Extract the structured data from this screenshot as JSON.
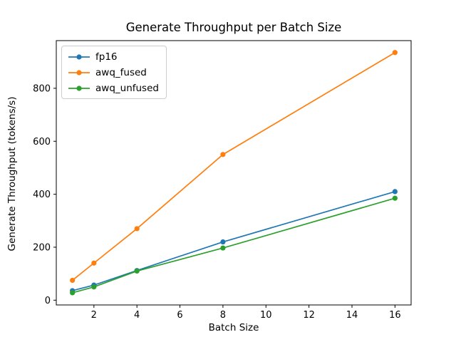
{
  "chart_data": {
    "type": "line",
    "title": "Generate Throughput per Batch Size",
    "xlabel": "Batch Size",
    "ylabel": "Generate Throughput (tokens/s)",
    "x": [
      1,
      2,
      4,
      8,
      16
    ],
    "series": [
      {
        "name": "fp16",
        "color": "#1f77b4",
        "values": [
          36,
          57,
          112,
          220,
          410
        ]
      },
      {
        "name": "awq_fused",
        "color": "#ff7f0e",
        "values": [
          75,
          140,
          270,
          550,
          935
        ]
      },
      {
        "name": "awq_unfused",
        "color": "#2ca02c",
        "values": [
          28,
          50,
          110,
          197,
          385
        ]
      }
    ],
    "xticks": [
      2,
      4,
      6,
      8,
      10,
      12,
      14,
      16
    ],
    "yticks": [
      0,
      200,
      400,
      600,
      800
    ],
    "xlim": [
      0.25,
      16.75
    ],
    "ylim": [
      -18,
      980
    ],
    "grid": false,
    "legend_position": "upper left",
    "marker": "circle",
    "axis_color": "#000000",
    "background_color": "#ffffff"
  }
}
